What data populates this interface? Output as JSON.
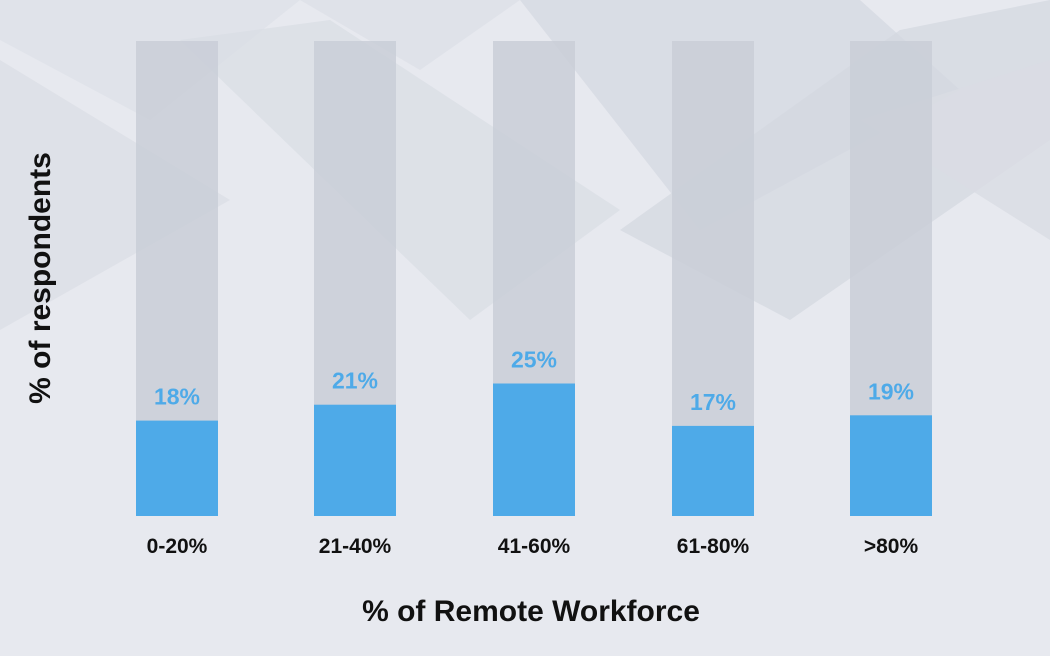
{
  "colors": {
    "background": "#e7e9ef",
    "track": "#c9ced7",
    "bar": "#4eaae8",
    "value_label": "#4eaae8",
    "text": "#111111"
  },
  "chart_data": {
    "type": "bar",
    "categories": [
      "0-20%",
      "21-40%",
      "41-60%",
      "61-80%",
      ">80%"
    ],
    "values": [
      18,
      21,
      25,
      17,
      19
    ],
    "value_labels": [
      "18%",
      "21%",
      "25%",
      "17%",
      "19%"
    ],
    "xlabel": "% of Remote Workforce",
    "ylabel": "% of respondents",
    "ylim": [
      0,
      100
    ],
    "grid": false,
    "legend": "none"
  }
}
